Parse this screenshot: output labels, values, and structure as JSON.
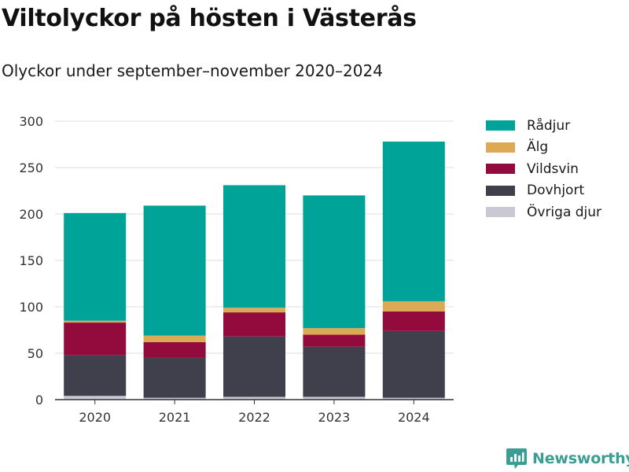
{
  "title": "Viltolyckor på hösten i Västerås",
  "subtitle": "Olyckor under september–november 2020–2024",
  "brand": {
    "name": "Newsworthy",
    "icon": "newsworthy-logo-icon",
    "color": "#3a9e94"
  },
  "chart_data": {
    "type": "bar",
    "stacked": true,
    "title": "Viltolyckor på hösten i Västerås",
    "subtitle": "Olyckor under september–november 2020–2024",
    "xlabel": "",
    "ylabel": "",
    "ylim": [
      0,
      300
    ],
    "yticks": [
      0,
      50,
      100,
      150,
      200,
      250,
      300
    ],
    "grid": true,
    "legend_position": "right",
    "categories": [
      "2020",
      "2021",
      "2022",
      "2023",
      "2024"
    ],
    "series": [
      {
        "name": "Övriga djur",
        "color": "#c9c8d3",
        "values": [
          4,
          2,
          3,
          3,
          2
        ]
      },
      {
        "name": "Dovhjort",
        "color": "#403f4c",
        "values": [
          44,
          43,
          65,
          54,
          72
        ]
      },
      {
        "name": "Vildsvin",
        "color": "#930a3d",
        "values": [
          35,
          17,
          26,
          13,
          21
        ]
      },
      {
        "name": "Älg",
        "color": "#dcaa55",
        "values": [
          2,
          7,
          5,
          7,
          11
        ]
      },
      {
        "name": "Rådjur",
        "color": "#00a397",
        "values": [
          116,
          140,
          132,
          143,
          172
        ]
      }
    ],
    "legend_order": [
      "Rådjur",
      "Älg",
      "Vildsvin",
      "Dovhjort",
      "Övriga djur"
    ]
  }
}
